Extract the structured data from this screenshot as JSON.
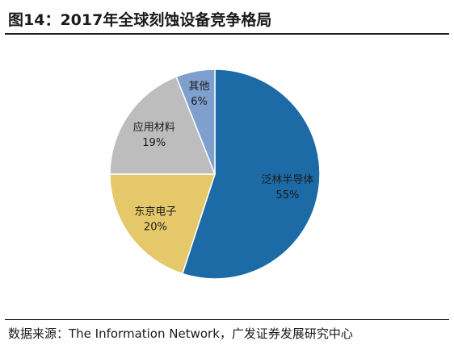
{
  "header": {
    "title": "图14：2017年全球刻蚀设备竞争格局"
  },
  "footer": {
    "source": "数据来源：The Information Network，广发证券发展研究中心"
  },
  "chart_data": {
    "type": "pie",
    "title": "图14：2017年全球刻蚀设备竞争格局",
    "slices": [
      {
        "label": "泛林半导体",
        "value": 55,
        "value_label": "55%",
        "color": "#1c6aa6"
      },
      {
        "label": "东京电子",
        "value": 20,
        "value_label": "20%",
        "color": "#e5c869"
      },
      {
        "label": "应用材料",
        "value": 19,
        "value_label": "19%",
        "color": "#bdbdbd"
      },
      {
        "label": "其他",
        "value": 6,
        "value_label": "6%",
        "color": "#7f9fcf"
      }
    ],
    "legend": "none",
    "start": "12 o'clock, clockwise"
  }
}
